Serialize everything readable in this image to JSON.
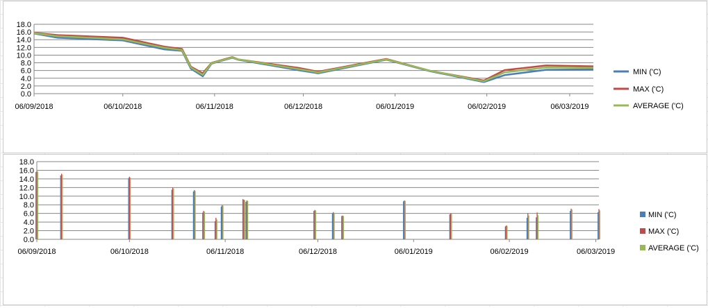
{
  "chart_data": [
    {
      "type": "line",
      "title": "",
      "xlabel": "",
      "ylabel": "",
      "ylim": [
        0,
        18
      ],
      "y_ticks": [
        "18.0",
        "16.0",
        "14.0",
        "12.0",
        "10.0",
        "8.0",
        "6.0",
        "4.0",
        "2.0",
        "0.0"
      ],
      "x_ticks": [
        {
          "date": "2018-09-06",
          "label": "06/09/2018"
        },
        {
          "date": "2018-10-06",
          "label": "06/10/2018"
        },
        {
          "date": "2018-11-06",
          "label": "06/11/2018"
        },
        {
          "date": "2018-12-06",
          "label": "06/12/2018"
        },
        {
          "date": "2019-01-06",
          "label": "06/01/2019"
        },
        {
          "date": "2019-02-06",
          "label": "06/02/2019"
        },
        {
          "date": "2019-03-06",
          "label": "06/03/2019"
        }
      ],
      "x_start": "2018-09-06",
      "x_end": "2019-03-14",
      "grid": true,
      "legend_position": "right",
      "series": [
        {
          "name": "MIN ('C)",
          "color": "#4a7ebb",
          "points": [
            [
              "2018-09-06",
              15.6
            ],
            [
              "2018-09-14",
              14.5
            ],
            [
              "2018-10-06",
              13.8
            ],
            [
              "2018-10-20",
              11.5
            ],
            [
              "2018-10-26",
              11.1
            ],
            [
              "2018-10-29",
              6.5
            ],
            [
              "2018-11-02",
              4.5
            ],
            [
              "2018-11-05",
              7.8
            ],
            [
              "2018-11-12",
              9.3
            ],
            [
              "2018-11-14",
              8.8
            ],
            [
              "2018-12-05",
              6.0
            ],
            [
              "2018-12-11",
              5.3
            ],
            [
              "2019-01-03",
              8.8
            ],
            [
              "2019-01-18",
              5.8
            ],
            [
              "2019-02-05",
              3.0
            ],
            [
              "2019-02-12",
              4.8
            ],
            [
              "2019-02-26",
              6.2
            ],
            [
              "2019-03-14",
              6.3
            ]
          ]
        },
        {
          "name": "MAX ('C)",
          "color": "#be4b48",
          "points": [
            [
              "2018-09-06",
              15.8
            ],
            [
              "2018-09-14",
              15.2
            ],
            [
              "2018-10-06",
              14.5
            ],
            [
              "2018-10-20",
              12.2
            ],
            [
              "2018-10-26",
              11.6
            ],
            [
              "2018-10-29",
              7.0
            ],
            [
              "2018-11-02",
              5.3
            ],
            [
              "2018-11-05",
              8.0
            ],
            [
              "2018-11-12",
              9.5
            ],
            [
              "2018-11-14",
              8.9
            ],
            [
              "2018-12-05",
              6.6
            ],
            [
              "2018-12-11",
              5.7
            ],
            [
              "2019-01-03",
              9.0
            ],
            [
              "2019-01-18",
              5.9
            ],
            [
              "2019-02-05",
              3.4
            ],
            [
              "2019-02-12",
              6.1
            ],
            [
              "2019-02-26",
              7.3
            ],
            [
              "2019-03-14",
              7.1
            ]
          ]
        },
        {
          "name": "AVERAGE ('C)",
          "color": "#98b954",
          "points": [
            [
              "2018-09-06",
              15.7
            ],
            [
              "2018-09-14",
              14.9
            ],
            [
              "2018-10-06",
              14.1
            ],
            [
              "2018-10-20",
              11.9
            ],
            [
              "2018-10-26",
              11.3
            ],
            [
              "2018-10-29",
              6.8
            ],
            [
              "2018-11-02",
              4.9
            ],
            [
              "2018-11-05",
              7.9
            ],
            [
              "2018-11-12",
              9.4
            ],
            [
              "2018-11-14",
              8.9
            ],
            [
              "2018-12-05",
              6.3
            ],
            [
              "2018-12-11",
              5.5
            ],
            [
              "2019-01-03",
              8.9
            ],
            [
              "2019-01-18",
              5.9
            ],
            [
              "2019-02-05",
              3.2
            ],
            [
              "2019-02-12",
              5.5
            ],
            [
              "2019-02-26",
              6.8
            ],
            [
              "2019-03-14",
              6.7
            ]
          ]
        }
      ]
    },
    {
      "type": "bar",
      "title": "",
      "xlabel": "",
      "ylabel": "",
      "ylim": [
        0,
        18
      ],
      "y_ticks": [
        "18.0",
        "16.0",
        "14.0",
        "12.0",
        "10.0",
        "8.0",
        "6.0",
        "4.0",
        "2.0",
        "0.0"
      ],
      "x_ticks": [
        {
          "date": "2018-09-06",
          "label": "06/09/2018"
        },
        {
          "date": "2018-10-06",
          "label": "06/10/2018"
        },
        {
          "date": "2018-11-06",
          "label": "06/11/2018"
        },
        {
          "date": "2018-12-06",
          "label": "06/12/2018"
        },
        {
          "date": "2019-01-06",
          "label": "06/01/2019"
        },
        {
          "date": "2019-02-06",
          "label": "06/02/2019"
        },
        {
          "date": "2019-03-06",
          "label": "06/03/2019"
        }
      ],
      "x_start": "2018-09-06",
      "x_end": "2019-03-07",
      "grid": true,
      "legend_position": "right",
      "x": [
        "2018-09-06",
        "2018-09-14",
        "2018-10-06",
        "2018-10-20",
        "2018-10-27",
        "2018-10-30",
        "2018-11-03",
        "2018-11-05",
        "2018-11-12",
        "2018-11-13",
        "2018-12-05",
        "2018-12-11",
        "2018-12-14",
        "2019-01-03",
        "2019-01-18",
        "2019-02-05",
        "2019-02-12",
        "2019-02-15",
        "2019-02-26",
        "2019-03-07"
      ],
      "series": [
        {
          "name": "MIN ('C)",
          "color": "#4a7ebb",
          "values": [
            15.6,
            14.8,
            14.2,
            11.5,
            11.1,
            6.2,
            4.2,
            7.6,
            9.3,
            8.7,
            6.6,
            6.0,
            5.4,
            8.8,
            5.8,
            3.0,
            5.0,
            5.1,
            6.6,
            6.3
          ]
        },
        {
          "name": "MAX ('C)",
          "color": "#be4b48",
          "values": [
            15.8,
            15.2,
            14.5,
            12.0,
            11.4,
            6.6,
            5.0,
            7.9,
            9.2,
            9.0,
            6.8,
            6.3,
            5.5,
            9.0,
            6.0,
            3.2,
            6.0,
            6.2,
            7.1,
            7.0
          ]
        },
        {
          "name": "AVERAGE ('C)",
          "color": "#98b954",
          "values": [
            15.7,
            15.0,
            14.3,
            11.8,
            11.2,
            6.4,
            4.6,
            7.8,
            9.1,
            8.9,
            6.7,
            6.1,
            5.4,
            8.9,
            5.9,
            3.1,
            5.5,
            5.6,
            6.9,
            6.7
          ]
        }
      ]
    }
  ]
}
